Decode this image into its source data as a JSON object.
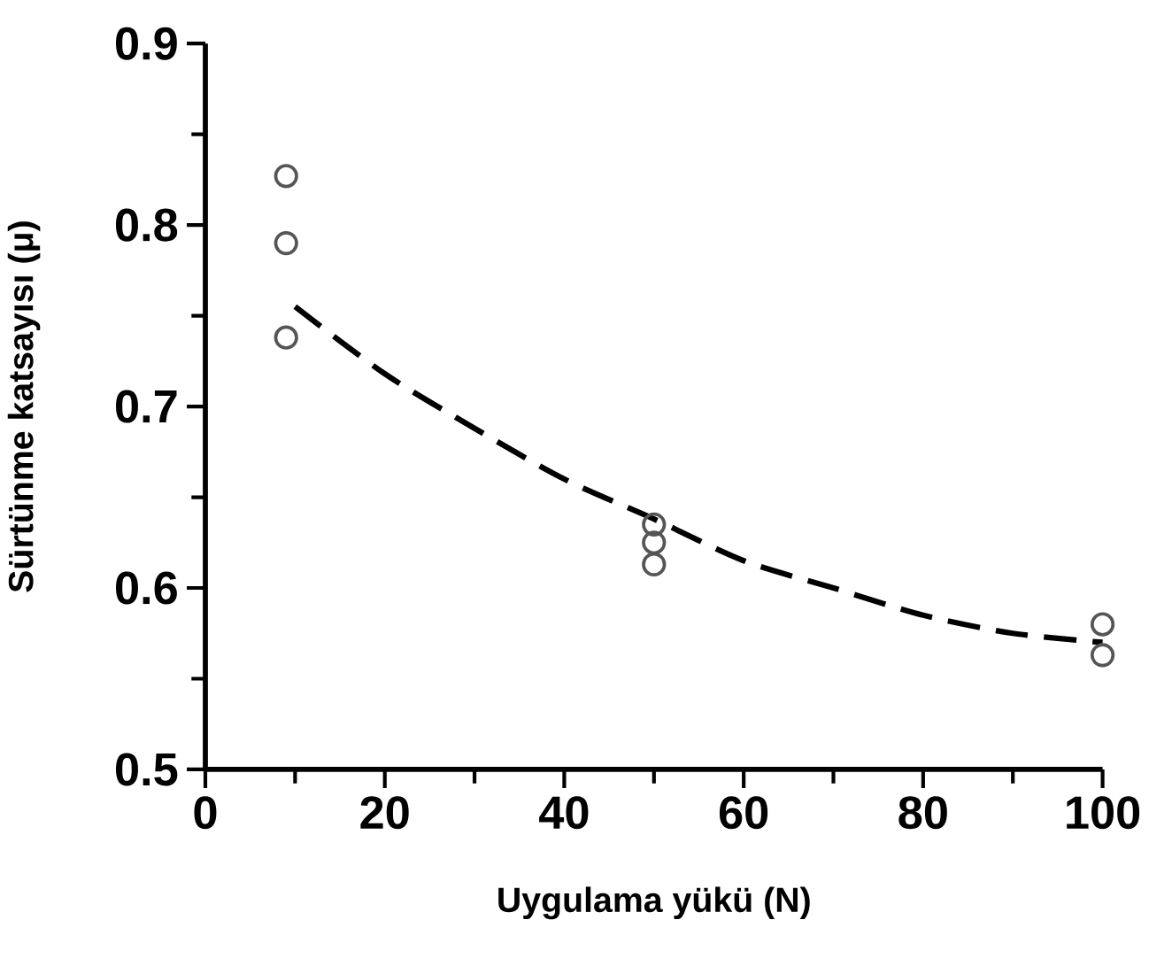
{
  "chart_data": {
    "type": "scatter",
    "xlabel": "Uygulama yükü (N)",
    "ylabel": "Sürtünme katsayısı (μ)",
    "xlim": [
      0,
      100
    ],
    "ylim": [
      0.5,
      0.9
    ],
    "xticks": [
      0,
      20,
      40,
      60,
      80,
      100
    ],
    "yticks": [
      0.5,
      0.6,
      0.7,
      0.8,
      0.9
    ],
    "grid": false,
    "series": [
      {
        "marker": "circle",
        "color": "#555555",
        "x": [
          9,
          9,
          9,
          50,
          50,
          50,
          100,
          100
        ],
        "values": [
          0.827,
          0.79,
          0.738,
          0.635,
          0.625,
          0.613,
          0.58,
          0.563
        ]
      },
      {
        "type": "line",
        "line_style": "dashed",
        "marker": "none",
        "color": "#000000",
        "x": [
          10,
          20,
          30,
          40,
          50,
          60,
          70,
          80,
          90,
          100
        ],
        "values": [
          0.755,
          0.718,
          0.688,
          0.66,
          0.638,
          0.615,
          0.6,
          0.585,
          0.575,
          0.57
        ]
      }
    ]
  }
}
